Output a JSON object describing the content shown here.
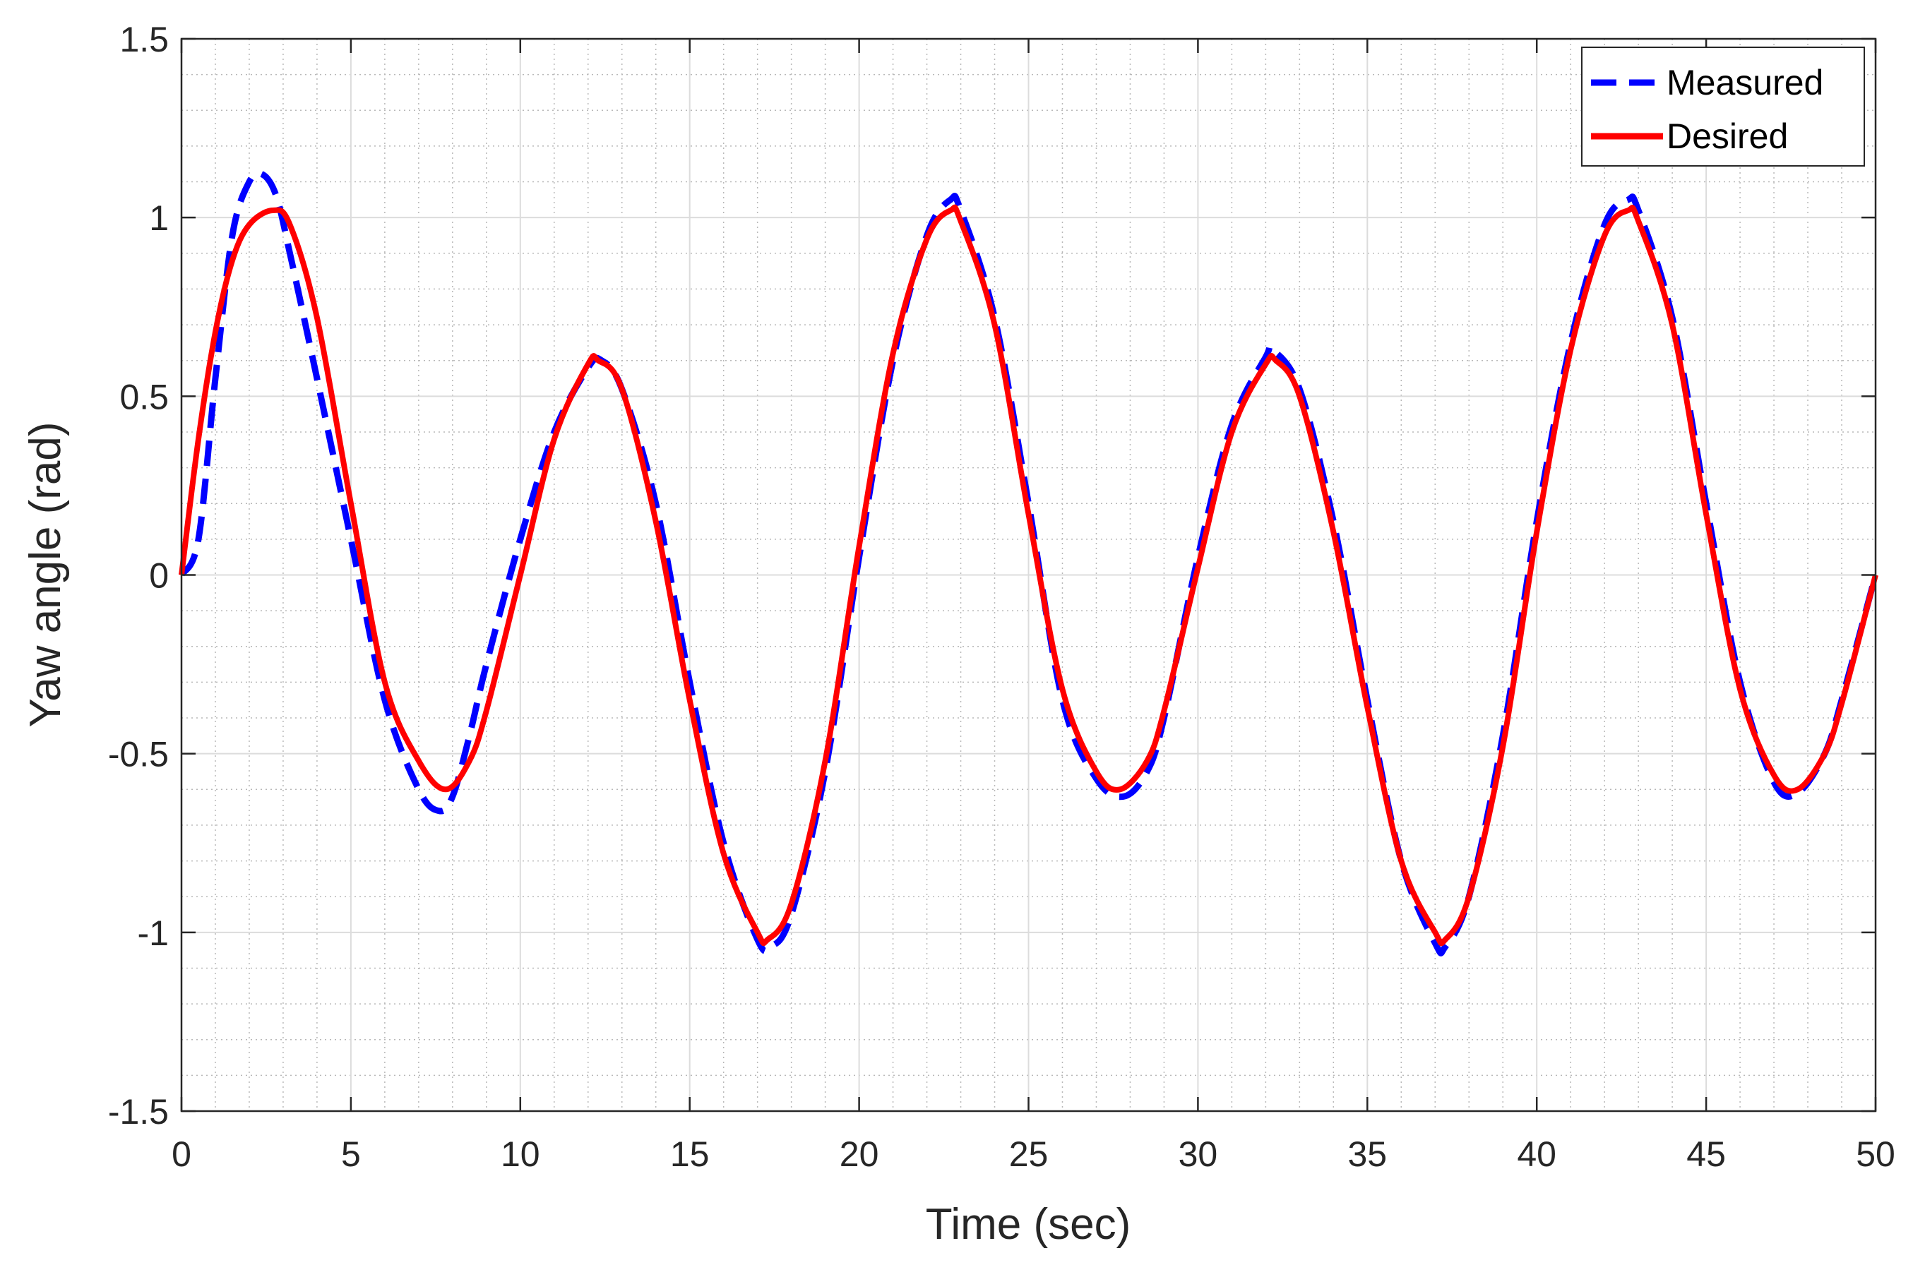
{
  "chart_data": {
    "type": "line",
    "title": "",
    "xlabel": "Time (sec)",
    "ylabel": "Yaw angle (rad)",
    "xlim": [
      0,
      50
    ],
    "ylim": [
      -1.5,
      1.5
    ],
    "xticks": [
      "0",
      "5",
      "10",
      "15",
      "20",
      "25",
      "30",
      "35",
      "40",
      "45",
      "50"
    ],
    "yticks": [
      "-1.5",
      "-1",
      "-0.5",
      "0",
      "0.5",
      "1",
      "1.5"
    ],
    "grid": true,
    "minor_grid": true,
    "legend_position": "top-right",
    "series": [
      {
        "name": "Measured",
        "color": "#0000ff",
        "style": "dashed",
        "x": [
          0,
          0.5,
          1,
          1.5,
          2,
          2.4,
          2.8,
          3.2,
          4,
          5,
          6,
          7,
          7.6,
          8,
          8.5,
          9,
          10,
          11,
          12,
          12.4,
          13,
          14,
          15,
          16,
          17,
          17.4,
          18,
          19,
          20,
          21,
          22,
          22.7,
          23,
          24,
          25,
          26,
          27,
          27.8,
          28.5,
          29,
          30,
          31,
          32,
          32.2,
          33,
          34,
          35,
          36,
          37,
          37.3,
          38,
          39,
          40,
          41,
          42,
          42.7,
          43,
          44,
          45,
          46,
          47,
          47.7,
          48.5,
          49,
          50
        ],
        "y": [
          0,
          0.1,
          0.55,
          0.95,
          1.1,
          1.12,
          1.06,
          0.9,
          0.55,
          0.1,
          -0.35,
          -0.6,
          -0.66,
          -0.62,
          -0.45,
          -0.25,
          0.1,
          0.4,
          0.58,
          0.6,
          0.52,
          0.2,
          -0.3,
          -0.75,
          -1.02,
          -1.04,
          -0.95,
          -0.55,
          0.05,
          0.6,
          0.95,
          1.05,
          1.02,
          0.72,
          0.2,
          -0.35,
          -0.57,
          -0.62,
          -0.55,
          -0.4,
          0.05,
          0.42,
          0.61,
          0.63,
          0.52,
          0.15,
          -0.35,
          -0.8,
          -1.03,
          -1.04,
          -0.9,
          -0.45,
          0.15,
          0.65,
          0.98,
          1.05,
          1.02,
          0.72,
          0.2,
          -0.3,
          -0.58,
          -0.61,
          -0.5,
          -0.35,
          0.0
        ]
      },
      {
        "name": "Desired",
        "color": "#ff0000",
        "style": "solid",
        "x": [
          0,
          0.5,
          1,
          1.5,
          2,
          2.7,
          3.2,
          4,
          5,
          6,
          7,
          7.8,
          8.5,
          9,
          10,
          11,
          12,
          12.3,
          13,
          14,
          15,
          16,
          17,
          17.3,
          18,
          19,
          20,
          21,
          22,
          22.7,
          23,
          24,
          25,
          26,
          27,
          27.7,
          28.5,
          29,
          30,
          31,
          32,
          32.3,
          33,
          34,
          35,
          36,
          37,
          37.3,
          38,
          39,
          40,
          41,
          42,
          42.7,
          43,
          44,
          45,
          46,
          47,
          47.7,
          48.5,
          49,
          50
        ],
        "y": [
          0,
          0.38,
          0.68,
          0.88,
          0.98,
          1.02,
          0.98,
          0.72,
          0.2,
          -0.3,
          -0.52,
          -0.6,
          -0.52,
          -0.38,
          0.0,
          0.38,
          0.59,
          0.6,
          0.52,
          0.15,
          -0.35,
          -0.78,
          -1.0,
          -1.02,
          -0.92,
          -0.52,
          0.08,
          0.62,
          0.94,
          1.02,
          0.99,
          0.7,
          0.17,
          -0.32,
          -0.55,
          -0.6,
          -0.52,
          -0.38,
          0.02,
          0.4,
          0.59,
          0.6,
          0.5,
          0.12,
          -0.37,
          -0.8,
          -1.0,
          -1.02,
          -0.9,
          -0.48,
          0.12,
          0.63,
          0.95,
          1.02,
          0.99,
          0.7,
          0.17,
          -0.32,
          -0.56,
          -0.6,
          -0.5,
          -0.36,
          0.0
        ]
      }
    ]
  }
}
